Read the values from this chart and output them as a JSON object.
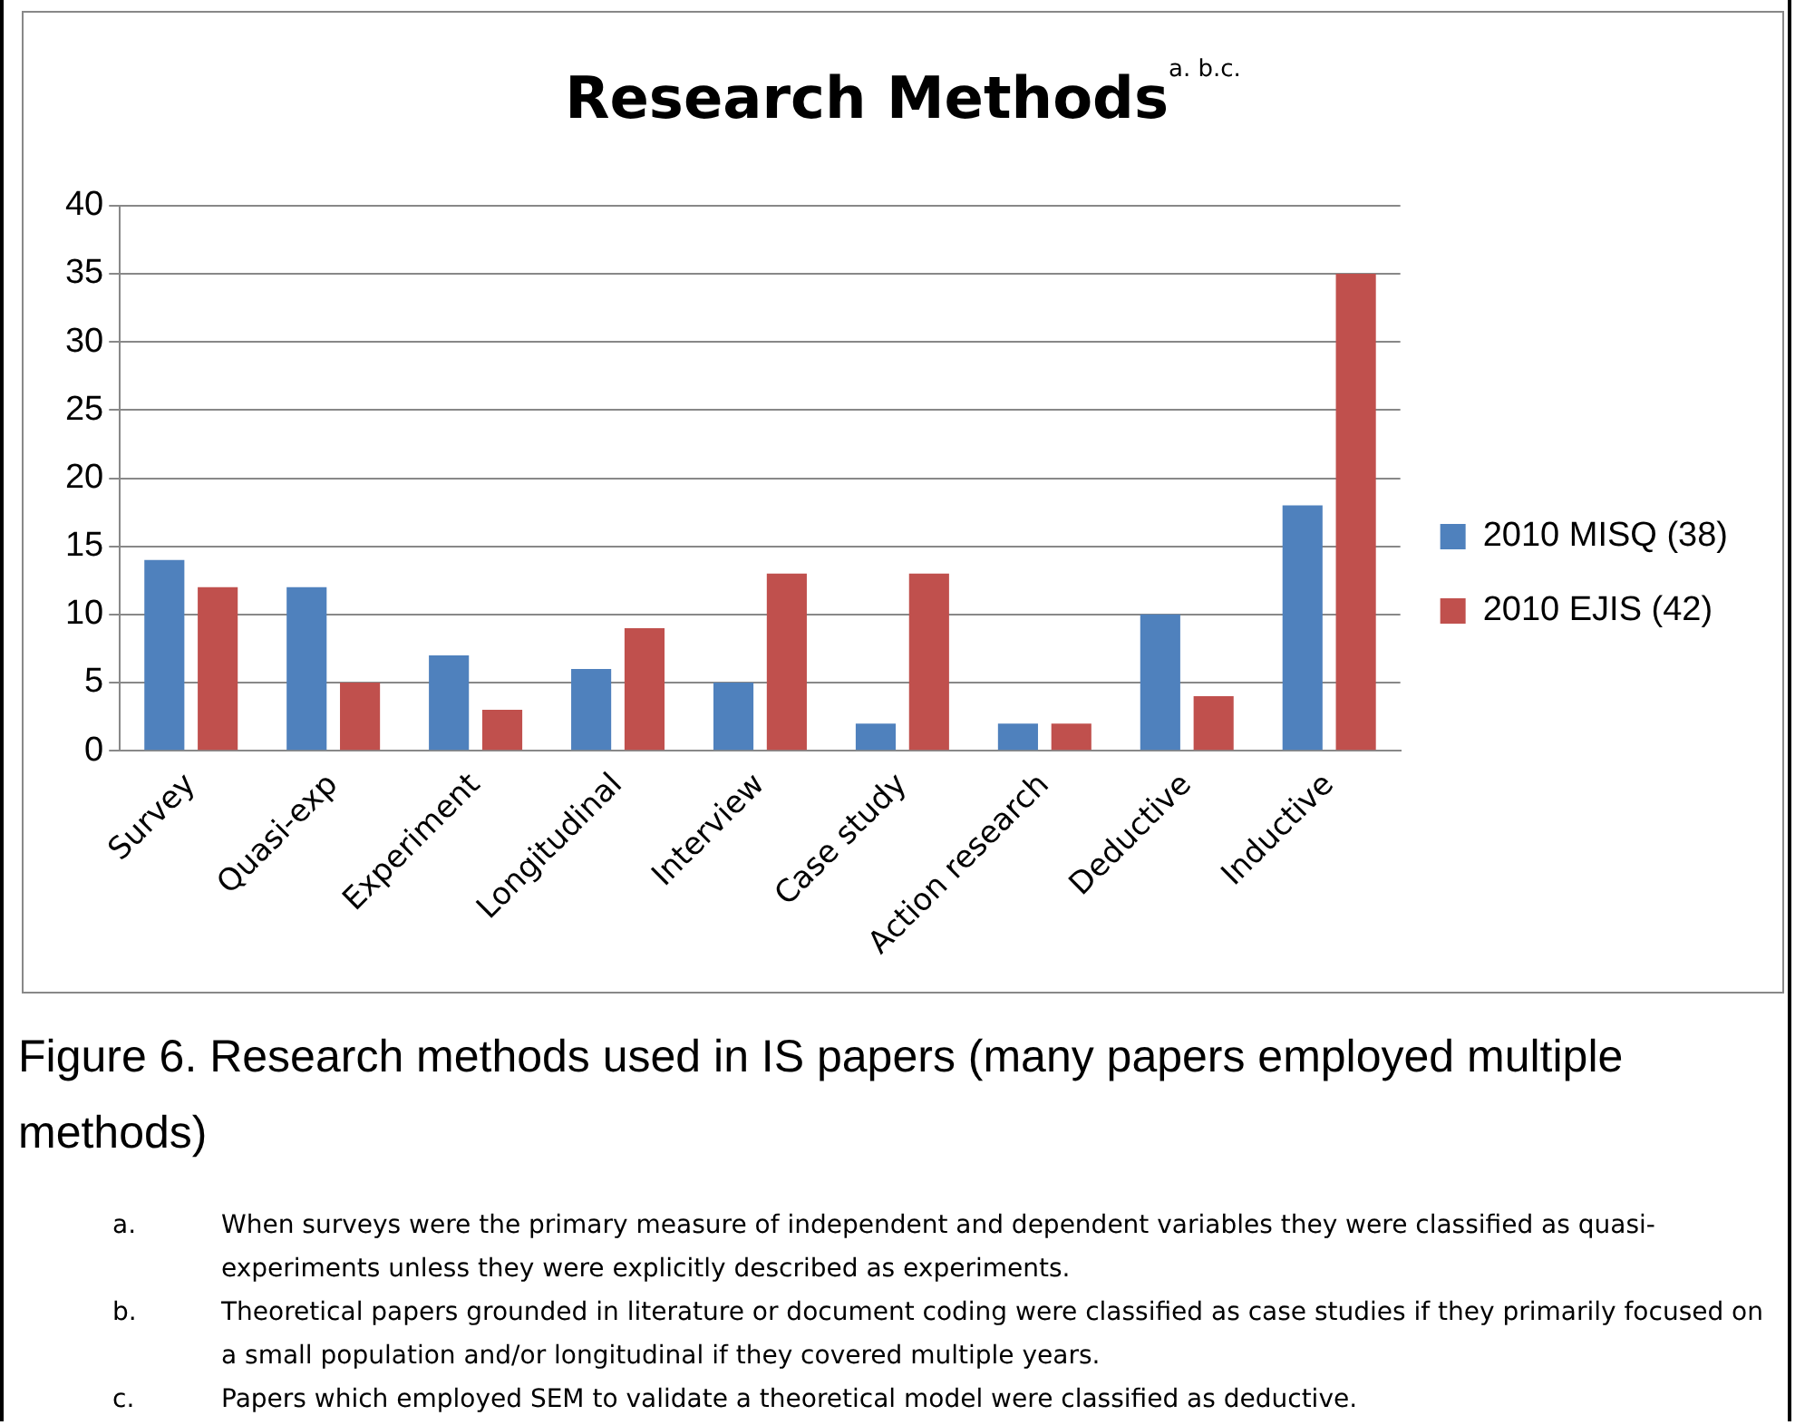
{
  "chart_data": {
    "type": "bar",
    "title": "Research Methods$^{a. b.c.}$",
    "categories": [
      "Survey",
      "Quasi-exp",
      "Experiment",
      "Longitudinal",
      "Interview",
      "Case study",
      "Action research",
      "Deductive",
      "Inductive"
    ],
    "series": [
      {
        "name": "2010 MISQ (38)",
        "color": "#4f81bd",
        "values": [
          14,
          12,
          7,
          6,
          5,
          2,
          2,
          10,
          18
        ]
      },
      {
        "name": "2010 EJIS (42)",
        "color": "#c0504d",
        "values": [
          12,
          5,
          3,
          9,
          13,
          13,
          2,
          4,
          35
        ]
      }
    ],
    "ylim": [
      0,
      40
    ],
    "yticks": [
      0,
      5,
      10,
      15,
      20,
      25,
      30,
      35,
      40
    ],
    "grid": "y",
    "legend": "right",
    "annotations": [
      "Figure 6. Research methods used in IS papers (many papers employed multiple methods)",
      "a.\tWhen surveys were the primary measure of independent and dependent variables they were classified as quasi-experiments unless they were explicitly described as experiments.",
      "b.\tTheoretical papers grounded in literature or document coding were classified as case studies if they primarily focused on a small population and/or longitudinal if they covered multiple years.",
      "c.\tPapers which employed SEM to validate a theoretical model were classified as deductive."
    ]
  }
}
